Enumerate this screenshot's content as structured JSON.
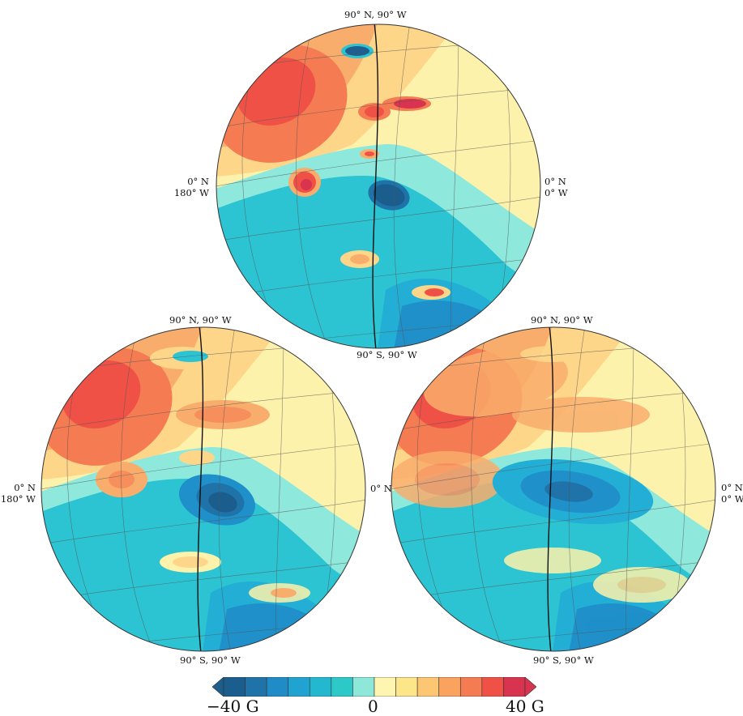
{
  "labels": {
    "north_pole": "90° N, 90° W",
    "south_pole": "90° S, 90° W",
    "left_lat": "0° N",
    "left_lon": "180° W",
    "right_lat": "0° N",
    "right_lon": "0° W"
  },
  "colorbar": {
    "min_label": "−40 G",
    "mid_label": "0",
    "max_label": "40 G",
    "colors": [
      "#1b5d8c",
      "#1f73a8",
      "#1f8cc8",
      "#21a3d2",
      "#23b8d0",
      "#2cc9c8",
      "#8ee8d9",
      "#fdf5b0",
      "#fde58a",
      "#fdc672",
      "#f9a35e",
      "#f47b52",
      "#ef5146",
      "#d8334f"
    ]
  },
  "palette": {
    "dark_blue": "#1f5e8e",
    "mid_blue": "#1f90c9",
    "cyan": "#2cc3d2",
    "light_cyan": "#8ee8dc",
    "light_yellow": "#fdf2ab",
    "yellow_orange": "#fdd68a",
    "orange": "#f9ad6c",
    "red_orange": "#f47b52",
    "red": "#ef5146",
    "crimson": "#d8334f"
  }
}
